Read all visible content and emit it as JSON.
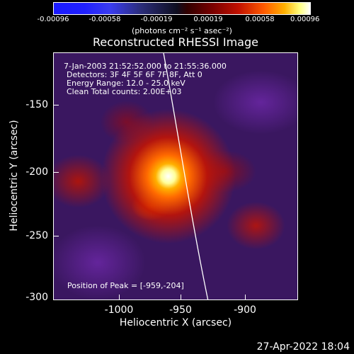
{
  "colorbar": {
    "ticks": [
      "-0.00096",
      "-0.00058",
      "-0.00019",
      "0.00019",
      "0.00058",
      "0.00096"
    ],
    "units": "(photons cm⁻² s⁻¹ asec⁻²)"
  },
  "plot": {
    "title": "Reconstructed RHESSI Image",
    "info_lines": [
      "7-Jan-2003 21:52:52.000 to 21:55:36.000",
      "Detectors: 3F 4F 5F 6F 7F 8F, Att 0",
      "Energy Range: 12.0 - 25.0 keV",
      "Clean    Total counts: 2.00E+03"
    ],
    "peak_label": "Position of Peak = [-959,-204]",
    "x_axis": {
      "label": "Heliocentric X (arcsec)",
      "ticks": [
        "-1000",
        "-950",
        "-900"
      ]
    },
    "y_axis": {
      "label": "Heliocentric Y (arcsec)",
      "ticks": [
        "-150",
        "-200",
        "-250",
        "-300"
      ]
    }
  },
  "footer": {
    "timestamp": "27-Apr-2022 18:04"
  }
}
